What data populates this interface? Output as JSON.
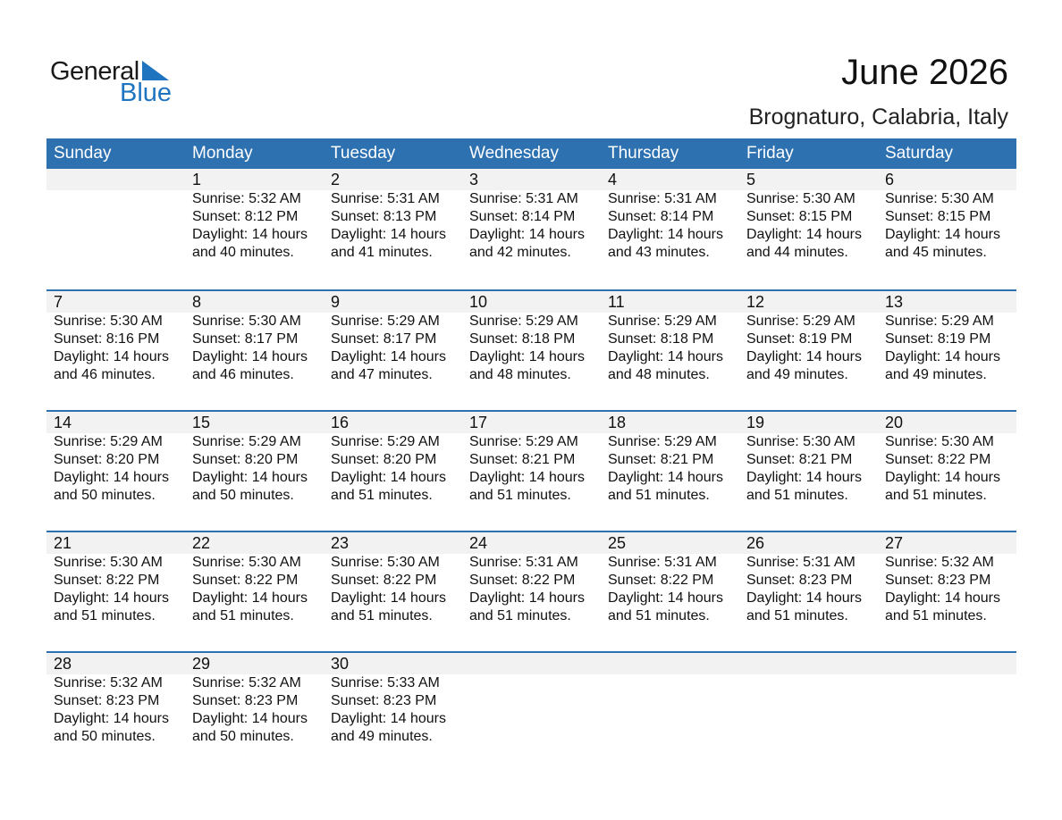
{
  "logo": {
    "line1": "General",
    "line2": "Blue"
  },
  "header": {
    "title": "June 2026",
    "location": "Brognaturo, Calabria, Italy"
  },
  "weekdays": [
    "Sunday",
    "Monday",
    "Tuesday",
    "Wednesday",
    "Thursday",
    "Friday",
    "Saturday"
  ],
  "colors": {
    "header_bg": "#2e71b1",
    "band_bg": "#f2f2f2",
    "logo_blue": "#1f74c0"
  },
  "weeks": [
    [
      null,
      {
        "date": "1",
        "sunrise": "Sunrise: 5:32 AM",
        "sunset": "Sunset: 8:12 PM",
        "daylight": "Daylight: 14 hours",
        "minutes": "and 40 minutes."
      },
      {
        "date": "2",
        "sunrise": "Sunrise: 5:31 AM",
        "sunset": "Sunset: 8:13 PM",
        "daylight": "Daylight: 14 hours",
        "minutes": "and 41 minutes."
      },
      {
        "date": "3",
        "sunrise": "Sunrise: 5:31 AM",
        "sunset": "Sunset: 8:14 PM",
        "daylight": "Daylight: 14 hours",
        "minutes": "and 42 minutes."
      },
      {
        "date": "4",
        "sunrise": "Sunrise: 5:31 AM",
        "sunset": "Sunset: 8:14 PM",
        "daylight": "Daylight: 14 hours",
        "minutes": "and 43 minutes."
      },
      {
        "date": "5",
        "sunrise": "Sunrise: 5:30 AM",
        "sunset": "Sunset: 8:15 PM",
        "daylight": "Daylight: 14 hours",
        "minutes": "and 44 minutes."
      },
      {
        "date": "6",
        "sunrise": "Sunrise: 5:30 AM",
        "sunset": "Sunset: 8:15 PM",
        "daylight": "Daylight: 14 hours",
        "minutes": "and 45 minutes."
      }
    ],
    [
      {
        "date": "7",
        "sunrise": "Sunrise: 5:30 AM",
        "sunset": "Sunset: 8:16 PM",
        "daylight": "Daylight: 14 hours",
        "minutes": "and 46 minutes."
      },
      {
        "date": "8",
        "sunrise": "Sunrise: 5:30 AM",
        "sunset": "Sunset: 8:17 PM",
        "daylight": "Daylight: 14 hours",
        "minutes": "and 46 minutes."
      },
      {
        "date": "9",
        "sunrise": "Sunrise: 5:29 AM",
        "sunset": "Sunset: 8:17 PM",
        "daylight": "Daylight: 14 hours",
        "minutes": "and 47 minutes."
      },
      {
        "date": "10",
        "sunrise": "Sunrise: 5:29 AM",
        "sunset": "Sunset: 8:18 PM",
        "daylight": "Daylight: 14 hours",
        "minutes": "and 48 minutes."
      },
      {
        "date": "11",
        "sunrise": "Sunrise: 5:29 AM",
        "sunset": "Sunset: 8:18 PM",
        "daylight": "Daylight: 14 hours",
        "minutes": "and 48 minutes."
      },
      {
        "date": "12",
        "sunrise": "Sunrise: 5:29 AM",
        "sunset": "Sunset: 8:19 PM",
        "daylight": "Daylight: 14 hours",
        "minutes": "and 49 minutes."
      },
      {
        "date": "13",
        "sunrise": "Sunrise: 5:29 AM",
        "sunset": "Sunset: 8:19 PM",
        "daylight": "Daylight: 14 hours",
        "minutes": "and 49 minutes."
      }
    ],
    [
      {
        "date": "14",
        "sunrise": "Sunrise: 5:29 AM",
        "sunset": "Sunset: 8:20 PM",
        "daylight": "Daylight: 14 hours",
        "minutes": "and 50 minutes."
      },
      {
        "date": "15",
        "sunrise": "Sunrise: 5:29 AM",
        "sunset": "Sunset: 8:20 PM",
        "daylight": "Daylight: 14 hours",
        "minutes": "and 50 minutes."
      },
      {
        "date": "16",
        "sunrise": "Sunrise: 5:29 AM",
        "sunset": "Sunset: 8:20 PM",
        "daylight": "Daylight: 14 hours",
        "minutes": "and 51 minutes."
      },
      {
        "date": "17",
        "sunrise": "Sunrise: 5:29 AM",
        "sunset": "Sunset: 8:21 PM",
        "daylight": "Daylight: 14 hours",
        "minutes": "and 51 minutes."
      },
      {
        "date": "18",
        "sunrise": "Sunrise: 5:29 AM",
        "sunset": "Sunset: 8:21 PM",
        "daylight": "Daylight: 14 hours",
        "minutes": "and 51 minutes."
      },
      {
        "date": "19",
        "sunrise": "Sunrise: 5:30 AM",
        "sunset": "Sunset: 8:21 PM",
        "daylight": "Daylight: 14 hours",
        "minutes": "and 51 minutes."
      },
      {
        "date": "20",
        "sunrise": "Sunrise: 5:30 AM",
        "sunset": "Sunset: 8:22 PM",
        "daylight": "Daylight: 14 hours",
        "minutes": "and 51 minutes."
      }
    ],
    [
      {
        "date": "21",
        "sunrise": "Sunrise: 5:30 AM",
        "sunset": "Sunset: 8:22 PM",
        "daylight": "Daylight: 14 hours",
        "minutes": "and 51 minutes."
      },
      {
        "date": "22",
        "sunrise": "Sunrise: 5:30 AM",
        "sunset": "Sunset: 8:22 PM",
        "daylight": "Daylight: 14 hours",
        "minutes": "and 51 minutes."
      },
      {
        "date": "23",
        "sunrise": "Sunrise: 5:30 AM",
        "sunset": "Sunset: 8:22 PM",
        "daylight": "Daylight: 14 hours",
        "minutes": "and 51 minutes."
      },
      {
        "date": "24",
        "sunrise": "Sunrise: 5:31 AM",
        "sunset": "Sunset: 8:22 PM",
        "daylight": "Daylight: 14 hours",
        "minutes": "and 51 minutes."
      },
      {
        "date": "25",
        "sunrise": "Sunrise: 5:31 AM",
        "sunset": "Sunset: 8:22 PM",
        "daylight": "Daylight: 14 hours",
        "minutes": "and 51 minutes."
      },
      {
        "date": "26",
        "sunrise": "Sunrise: 5:31 AM",
        "sunset": "Sunset: 8:23 PM",
        "daylight": "Daylight: 14 hours",
        "minutes": "and 51 minutes."
      },
      {
        "date": "27",
        "sunrise": "Sunrise: 5:32 AM",
        "sunset": "Sunset: 8:23 PM",
        "daylight": "Daylight: 14 hours",
        "minutes": "and 51 minutes."
      }
    ],
    [
      {
        "date": "28",
        "sunrise": "Sunrise: 5:32 AM",
        "sunset": "Sunset: 8:23 PM",
        "daylight": "Daylight: 14 hours",
        "minutes": "and 50 minutes."
      },
      {
        "date": "29",
        "sunrise": "Sunrise: 5:32 AM",
        "sunset": "Sunset: 8:23 PM",
        "daylight": "Daylight: 14 hours",
        "minutes": "and 50 minutes."
      },
      {
        "date": "30",
        "sunrise": "Sunrise: 5:33 AM",
        "sunset": "Sunset: 8:23 PM",
        "daylight": "Daylight: 14 hours",
        "minutes": "and 49 minutes."
      },
      null,
      null,
      null,
      null
    ]
  ]
}
